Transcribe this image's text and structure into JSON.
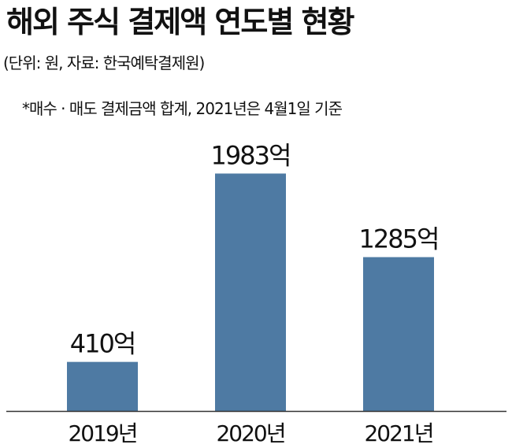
{
  "chart_data": {
    "type": "bar",
    "title": "해외 주식 결제액 연도별 현황",
    "subtitle": "(단위: 원, 자료: 한국예탁결제원)",
    "note": "*매수 · 매도 결제금액 합계, 2021년은 4월1일 기준",
    "categories": [
      "2019년",
      "2020년",
      "2021년"
    ],
    "values": [
      410,
      1983,
      1285
    ],
    "data_labels": [
      "410억",
      "1983억",
      "1285억"
    ],
    "ylim": [
      0,
      2400
    ],
    "bar_color": "#4e7aa3",
    "axis_color": "#333333",
    "grid": false,
    "legend": "none"
  }
}
